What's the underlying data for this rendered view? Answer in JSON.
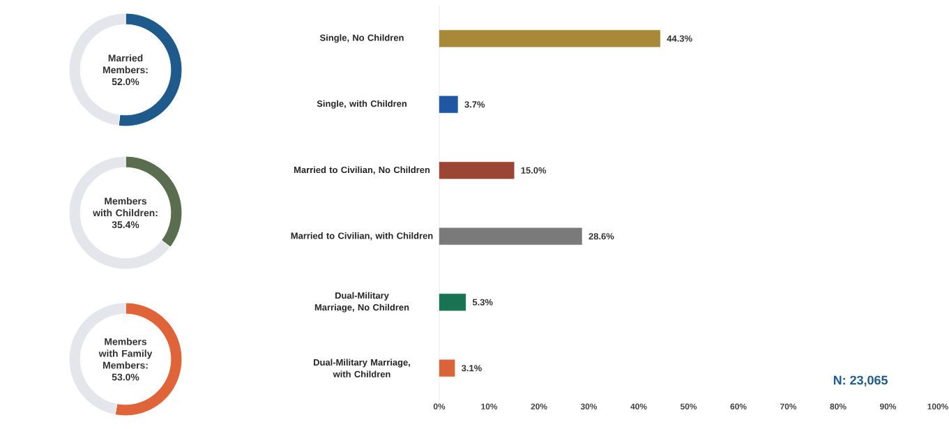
{
  "chart_data": [
    {
      "type": "donut",
      "title": "Married Members: 52.0%",
      "categories": [
        null,
        null
      ],
      "values": [
        52.0,
        48.0
      ],
      "colors": [
        "#1f5a8c",
        "#e4e6ec"
      ]
    },
    {
      "type": "donut",
      "title": "Members with Children: 35.4%",
      "categories": [
        null,
        null
      ],
      "values": [
        35.4,
        64.6
      ],
      "colors": [
        "#5a6e4f",
        "#e4e6ec"
      ]
    },
    {
      "type": "donut",
      "title": "Members with Family Members: 53.0%",
      "categories": [
        null,
        null
      ],
      "values": [
        53.0,
        47.0
      ],
      "colors": [
        "#e0643a",
        "#e4e6ec"
      ]
    },
    {
      "type": "bar",
      "orientation": "horizontal",
      "categories": [
        "Single, No Children",
        "Single, with Children",
        "Married to Civilian, No Children",
        "Married to Civilian, with Children",
        "Dual-Military Marriage, No Children",
        "Dual-Military Marriage, with Children"
      ],
      "values": [
        44.3,
        3.7,
        15.0,
        28.6,
        5.3,
        3.1
      ],
      "colors": [
        "#a8893a",
        "#1f57a4",
        "#9b4535",
        "#7a7a7a",
        "#187352",
        "#d9643a"
      ],
      "value_labels": [
        "44.3%",
        "3.7%",
        "15.0%",
        "28.6%",
        "5.3%",
        "3.1%"
      ],
      "xlim": [
        0,
        100
      ],
      "xticks": [
        {
          "value": 0,
          "label": "0%"
        },
        {
          "value": 10,
          "label": "10%"
        },
        {
          "value": 20,
          "label": "20%"
        },
        {
          "value": 30,
          "label": "30%"
        },
        {
          "value": 40,
          "label": "40%"
        },
        {
          "value": 50,
          "label": "50%"
        },
        {
          "value": 60,
          "label": "60%"
        },
        {
          "value": 70,
          "label": "70%"
        },
        {
          "value": 80,
          "label": "80%"
        },
        {
          "value": 90,
          "label": "90%"
        },
        {
          "value": 100,
          "label": "100%"
        }
      ],
      "annotations": [
        "N: 23,065"
      ]
    }
  ]
}
